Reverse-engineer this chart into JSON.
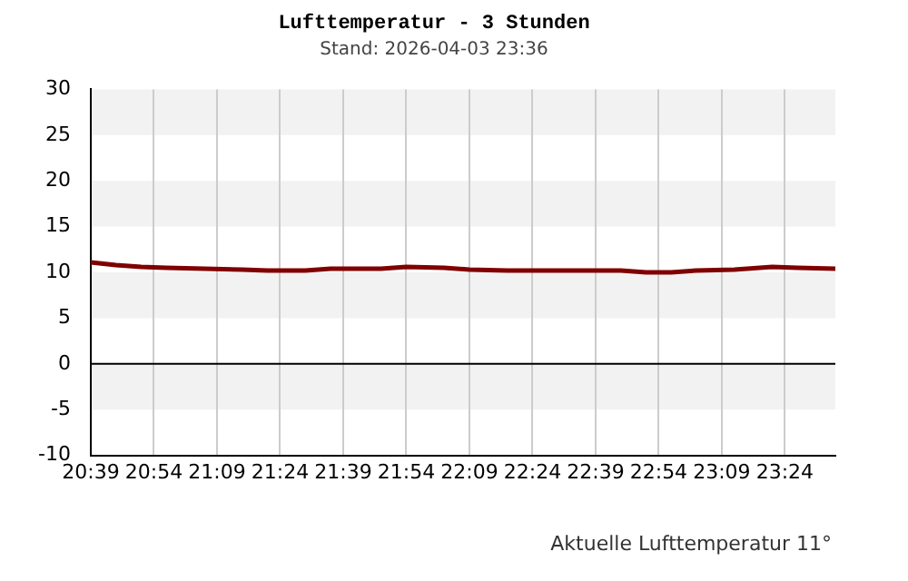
{
  "chart_data": {
    "type": "line",
    "title": "Lufttemperatur - 3 Stunden",
    "subtitle": "Stand: 2026-04-03 23:36",
    "annotations": [
      "Aktuelle Lufttemperatur 11°"
    ],
    "series": [
      {
        "color": "#800000",
        "x": [
          20.65,
          20.75,
          20.85,
          20.95,
          21.1,
          21.25,
          21.35,
          21.5,
          21.6,
          21.8,
          21.9,
          22.05,
          22.15,
          22.3,
          22.5,
          22.75,
          22.85,
          22.95,
          23.05,
          23.2,
          23.35,
          23.45,
          23.6
        ],
        "values": [
          11.1,
          10.8,
          10.6,
          10.5,
          10.4,
          10.3,
          10.2,
          10.2,
          10.4,
          10.4,
          10.6,
          10.5,
          10.3,
          10.2,
          10.2,
          10.2,
          10.0,
          10.0,
          10.2,
          10.3,
          10.6,
          10.5,
          10.4
        ]
      }
    ],
    "xlim": [
      20.65,
      23.6
    ],
    "xticks": [
      {
        "value": 20.65,
        "label": "20:39"
      },
      {
        "value": 20.9,
        "label": "20:54"
      },
      {
        "value": 21.15,
        "label": "21:09"
      },
      {
        "value": 21.4,
        "label": "21:24"
      },
      {
        "value": 21.65,
        "label": "21:39"
      },
      {
        "value": 21.9,
        "label": "21:54"
      },
      {
        "value": 22.15,
        "label": "22:09"
      },
      {
        "value": 22.4,
        "label": "22:24"
      },
      {
        "value": 22.65,
        "label": "22:39"
      },
      {
        "value": 22.9,
        "label": "22:54"
      },
      {
        "value": 23.15,
        "label": "23:09"
      },
      {
        "value": 23.4,
        "label": "23:24"
      }
    ],
    "ylim": [
      -10,
      30
    ],
    "yticks": [
      -10,
      -5,
      0,
      5,
      10,
      15,
      20,
      25,
      30
    ],
    "ref_lines": [
      {
        "axis": "y",
        "value": 0,
        "color": "#000000"
      }
    ],
    "grid": true,
    "legend": false,
    "marker": "none",
    "line_style": "solid"
  }
}
